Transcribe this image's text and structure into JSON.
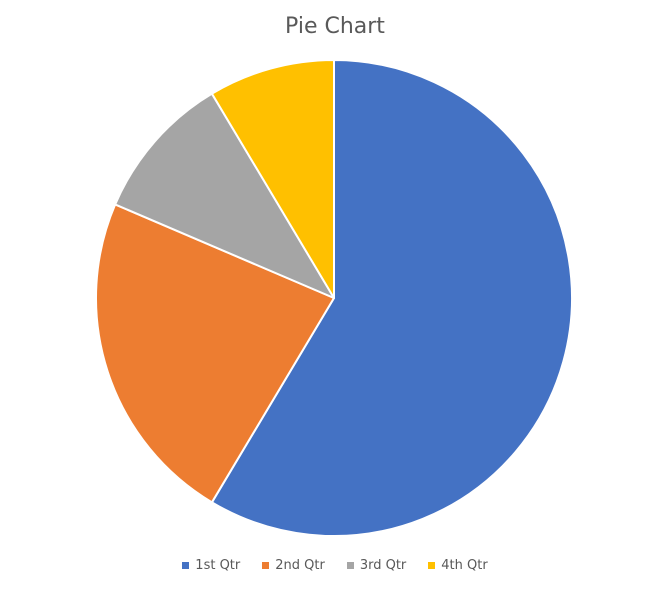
{
  "chart_data": {
    "type": "pie",
    "title": "Pie Chart",
    "categories": [
      "1st Qtr",
      "2nd Qtr",
      "3rd Qtr",
      "4th Qtr"
    ],
    "values": [
      8.2,
      3.2,
      1.4,
      1.2
    ],
    "colors": [
      "#4472c4",
      "#ed7d31",
      "#a5a5a5",
      "#ffc000"
    ],
    "legend_position": "bottom",
    "start_angle_deg": 0,
    "direction": "clockwise"
  }
}
